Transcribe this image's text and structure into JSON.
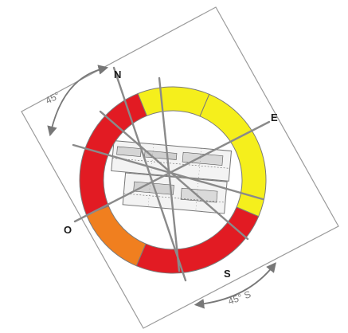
{
  "compass": {
    "north": "N",
    "east": "E",
    "south": "S",
    "west": "O"
  },
  "annotations": {
    "rotation_top": "45°",
    "rotation_bottom": "45° S"
  },
  "sectors": [
    {
      "name": "north-segment",
      "color": "#f5ef1c",
      "from_deg": 0,
      "to_deg": 90
    },
    {
      "name": "east-south-segment",
      "color": "#e21b23",
      "from_deg": 90,
      "to_deg": 180
    },
    {
      "name": "south-east-segment",
      "color": "#f07f1f",
      "from_deg": 180,
      "to_deg": 225
    },
    {
      "name": "south-west-segment",
      "color": "#e21b23",
      "from_deg": 225,
      "to_deg": 315
    },
    {
      "name": "north-west-segment",
      "color": "#f5ef1c",
      "from_deg": 315,
      "to_deg": 360
    }
  ],
  "colors": {
    "yellow": "#f5ef1c",
    "red": "#e21b23",
    "orange": "#f07f1f",
    "axis": "#8a8a8a",
    "frame": "#9a9a9a"
  },
  "rotation_deg": 23
}
